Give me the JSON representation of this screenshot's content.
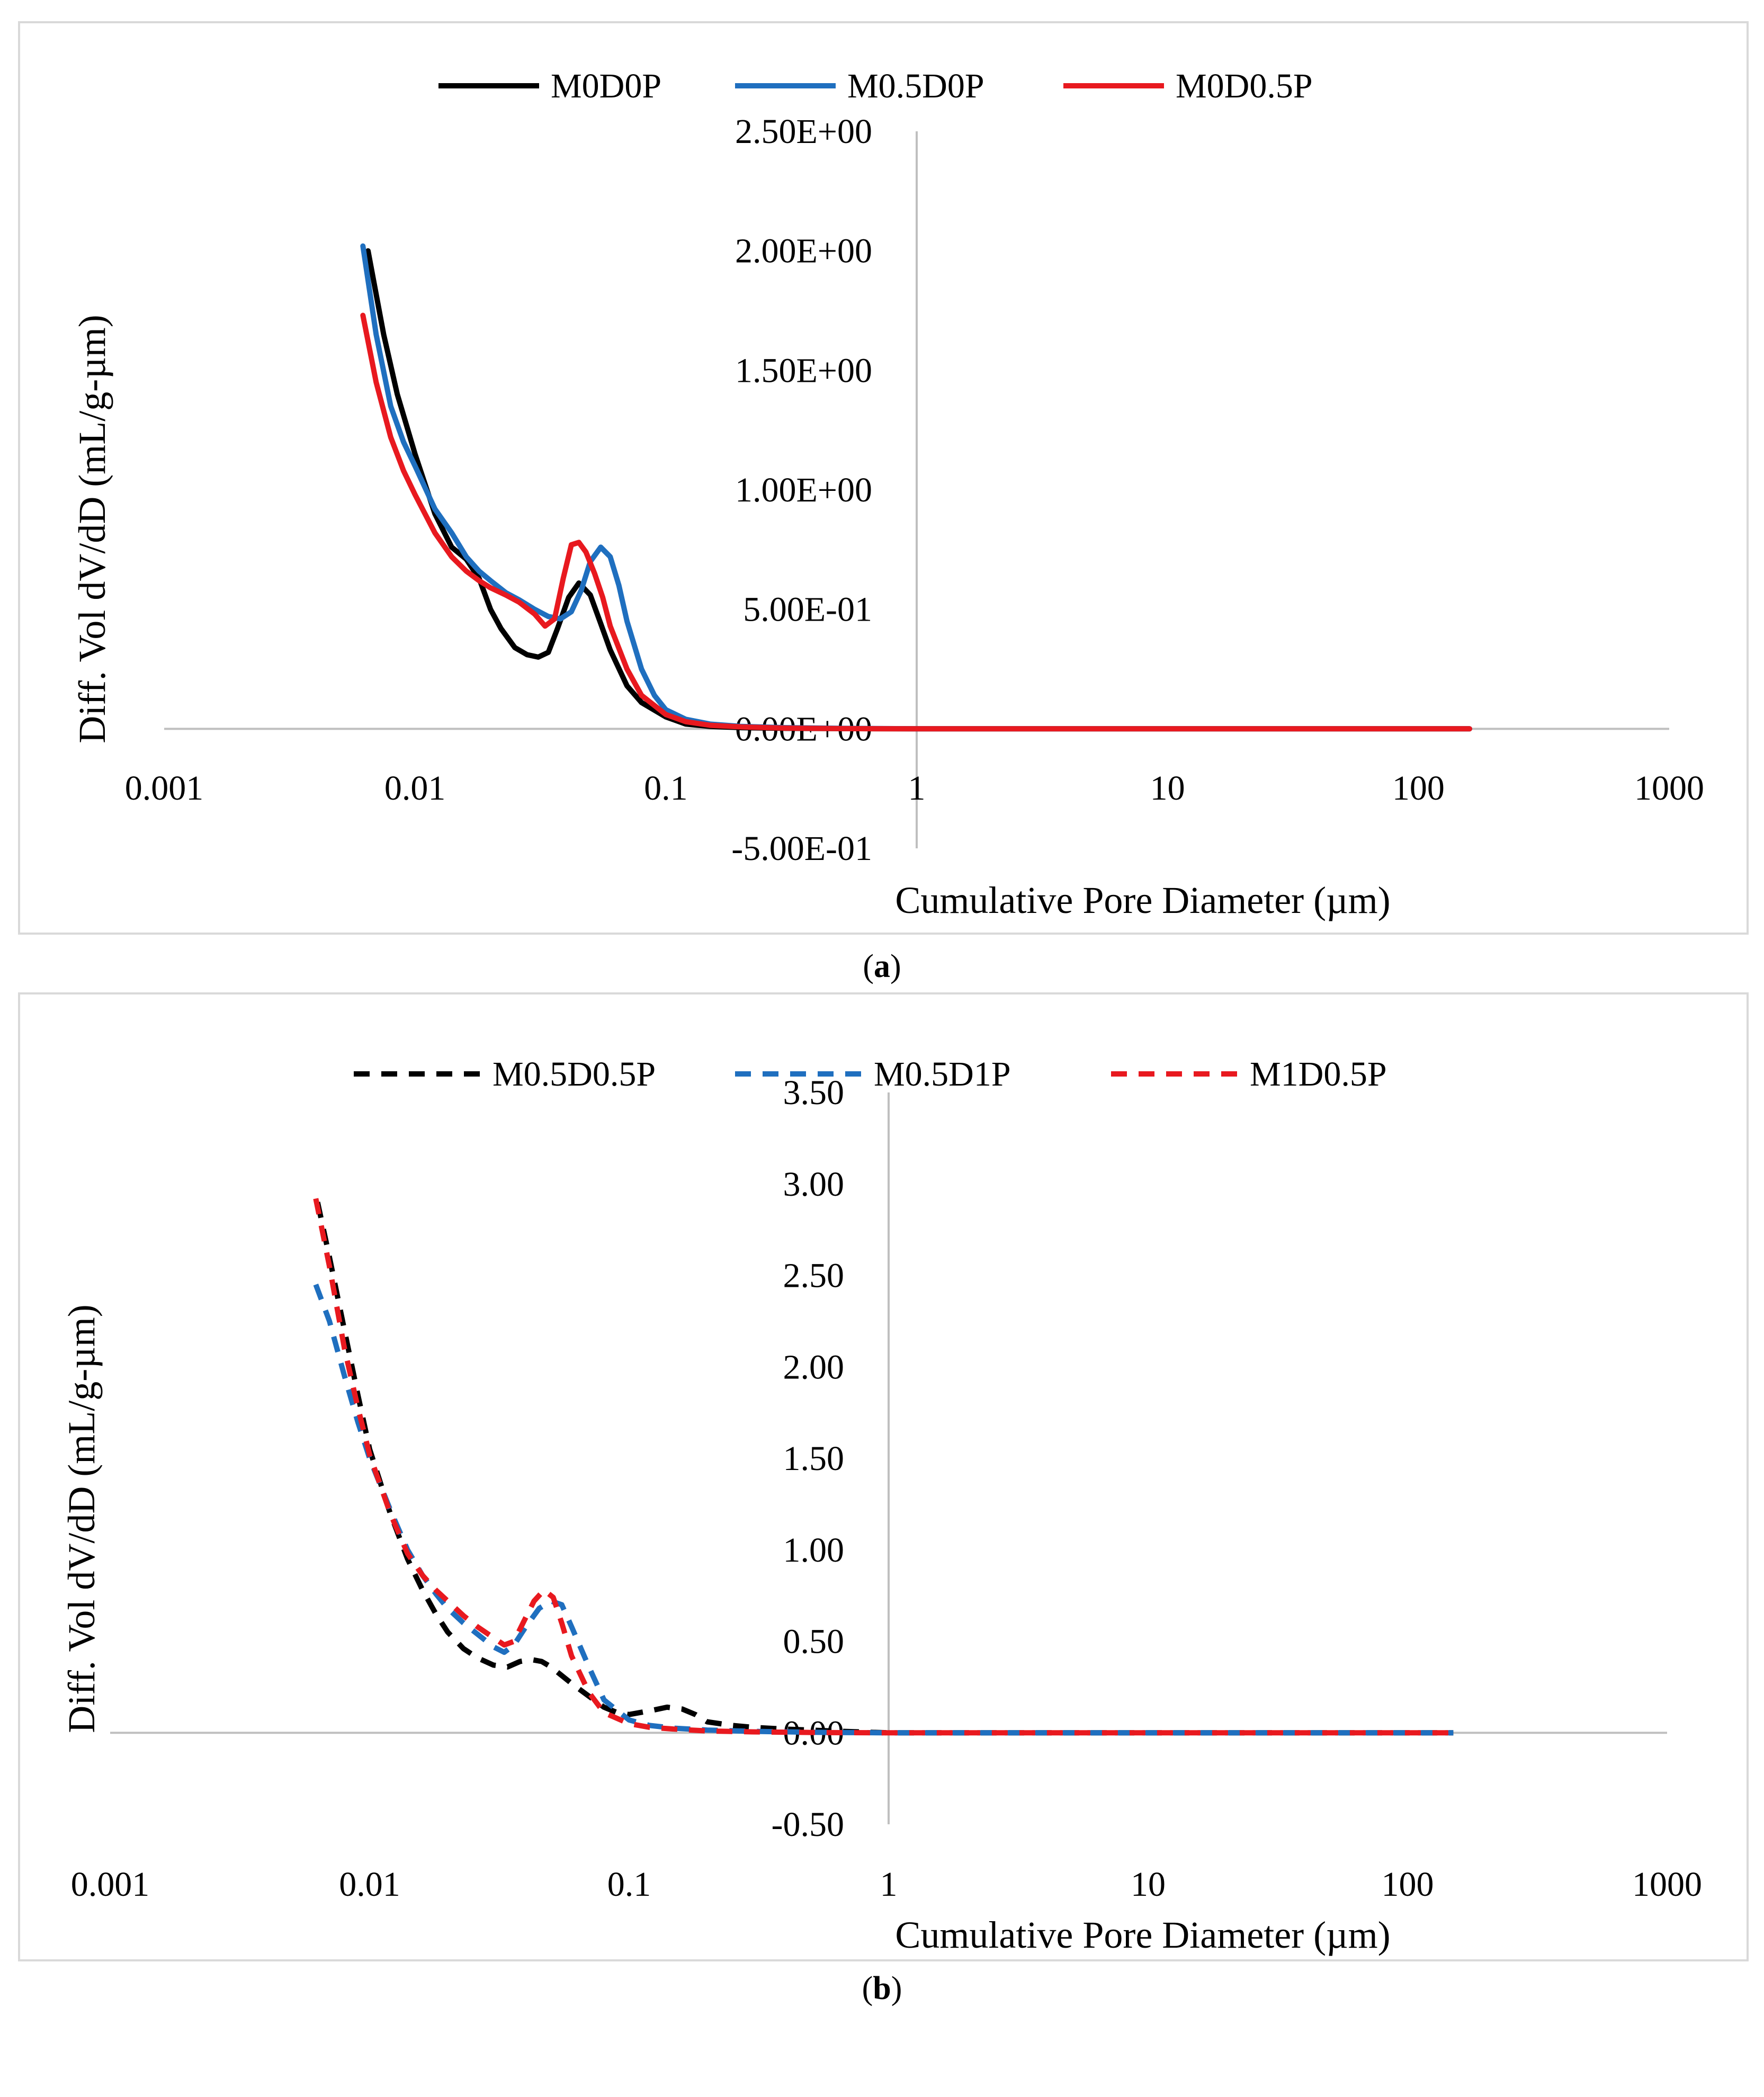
{
  "chart_data": [
    {
      "type": "line",
      "panel": "a",
      "caption_letter": "a",
      "title": "",
      "xlabel": "Cumulative Pore Diameter (µm)",
      "ylabel": "Diff. Vol  dV/dD (mL/g-µm)",
      "xscale": "log",
      "xlim": [
        0.001,
        1000
      ],
      "ylim": [
        -0.5,
        2.5
      ],
      "x_ticks": [
        0.001,
        0.01,
        0.1,
        1,
        10,
        100,
        1000
      ],
      "x_tick_labels": [
        "0.001",
        "0.01",
        "0.1",
        "1",
        "10",
        "100",
        "1000"
      ],
      "y_ticks": [
        -0.5,
        0,
        0.5,
        1,
        1.5,
        2,
        2.5
      ],
      "y_tick_labels": [
        "-5.00E-01",
        "0.00E+00",
        "5.00E-01",
        "1.00E+00",
        "1.50E+00",
        "2.00E+00",
        "2.50E+00"
      ],
      "y_axis_at_x": 1,
      "legend_position": "top",
      "series": [
        {
          "name": "M0D0P",
          "color": "#000000",
          "dash": "solid",
          "x": [
            0.0065,
            0.0075,
            0.0085,
            0.01,
            0.012,
            0.014,
            0.016,
            0.018,
            0.02,
            0.022,
            0.025,
            0.028,
            0.031,
            0.034,
            0.037,
            0.041,
            0.045,
            0.05,
            0.055,
            0.06,
            0.07,
            0.08,
            0.1,
            0.12,
            0.15,
            0.2,
            0.3,
            0.5,
            1,
            2,
            5,
            10,
            30,
            100,
            160
          ],
          "y": [
            2.0,
            1.65,
            1.4,
            1.15,
            0.9,
            0.76,
            0.71,
            0.63,
            0.5,
            0.42,
            0.34,
            0.31,
            0.3,
            0.32,
            0.42,
            0.55,
            0.61,
            0.56,
            0.44,
            0.33,
            0.18,
            0.11,
            0.05,
            0.02,
            0.01,
            0.005,
            0.002,
            0.001,
            0.0,
            0.0,
            0.0,
            0.0,
            0.0,
            0.0,
            0.0
          ]
        },
        {
          "name": "M0.5D0P",
          "color": "#1f6fbf",
          "dash": "solid",
          "x": [
            0.0062,
            0.007,
            0.008,
            0.009,
            0.01,
            0.012,
            0.014,
            0.016,
            0.018,
            0.02,
            0.023,
            0.026,
            0.03,
            0.034,
            0.038,
            0.042,
            0.046,
            0.05,
            0.055,
            0.06,
            0.065,
            0.07,
            0.08,
            0.09,
            0.1,
            0.12,
            0.15,
            0.2,
            0.3,
            0.5,
            1,
            3,
            10,
            30,
            100,
            160
          ],
          "y": [
            2.02,
            1.65,
            1.35,
            1.2,
            1.1,
            0.92,
            0.82,
            0.72,
            0.66,
            0.62,
            0.57,
            0.54,
            0.5,
            0.47,
            0.46,
            0.49,
            0.58,
            0.7,
            0.76,
            0.72,
            0.6,
            0.45,
            0.25,
            0.14,
            0.08,
            0.04,
            0.02,
            0.01,
            0.005,
            0.002,
            0.0,
            0.0,
            0.0,
            0.0,
            0.0,
            0.0
          ]
        },
        {
          "name": "M0D0.5P",
          "color": "#e8191f",
          "dash": "solid",
          "x": [
            0.0062,
            0.007,
            0.008,
            0.009,
            0.01,
            0.012,
            0.014,
            0.016,
            0.018,
            0.02,
            0.023,
            0.026,
            0.03,
            0.033,
            0.036,
            0.039,
            0.042,
            0.045,
            0.048,
            0.052,
            0.056,
            0.06,
            0.07,
            0.08,
            0.1,
            0.12,
            0.15,
            0.2,
            0.3,
            0.5,
            1,
            3,
            10,
            30,
            100,
            160
          ],
          "y": [
            1.73,
            1.45,
            1.22,
            1.08,
            0.98,
            0.82,
            0.72,
            0.66,
            0.62,
            0.59,
            0.56,
            0.53,
            0.48,
            0.43,
            0.46,
            0.63,
            0.77,
            0.78,
            0.74,
            0.65,
            0.55,
            0.43,
            0.25,
            0.14,
            0.06,
            0.03,
            0.015,
            0.008,
            0.003,
            0.001,
            0.0,
            0.0,
            0.0,
            0.0,
            0.0,
            0.0
          ]
        }
      ]
    },
    {
      "type": "line",
      "panel": "b",
      "caption_letter": "b",
      "title": "",
      "xlabel": "Cumulative Pore Diameter (µm)",
      "ylabel": "Diff. Vol  dV/dD (mL/g-µm)",
      "xscale": "log",
      "xlim": [
        0.001,
        1000
      ],
      "ylim": [
        -0.5,
        3.5
      ],
      "x_ticks": [
        0.001,
        0.01,
        0.1,
        1,
        10,
        100,
        1000
      ],
      "x_tick_labels": [
        "0.001",
        "0.01",
        "0.1",
        "1",
        "10",
        "100",
        "1000"
      ],
      "y_ticks": [
        -0.5,
        0,
        0.5,
        1,
        1.5,
        2,
        2.5,
        3,
        3.5
      ],
      "y_tick_labels": [
        "-0.50",
        "0.00",
        "0.50",
        "1.00",
        "1.50",
        "2.00",
        "2.50",
        "3.00",
        "3.50"
      ],
      "y_axis_at_x": 1,
      "legend_position": "top",
      "series": [
        {
          "name": "M0.5D0.5P",
          "color": "#000000",
          "dash": "dashed",
          "x": [
            0.0063,
            0.007,
            0.008,
            0.009,
            0.01,
            0.012,
            0.014,
            0.016,
            0.018,
            0.02,
            0.023,
            0.026,
            0.03,
            0.034,
            0.038,
            0.042,
            0.046,
            0.05,
            0.06,
            0.07,
            0.08,
            0.09,
            0.1,
            0.12,
            0.14,
            0.16,
            0.18,
            0.2,
            0.25,
            0.3,
            0.4,
            0.5,
            0.6,
            1,
            3,
            10,
            30,
            100,
            150
          ],
          "y": [
            2.9,
            2.6,
            2.2,
            1.85,
            1.55,
            1.2,
            0.95,
            0.78,
            0.65,
            0.55,
            0.46,
            0.41,
            0.37,
            0.36,
            0.39,
            0.4,
            0.39,
            0.36,
            0.27,
            0.2,
            0.14,
            0.11,
            0.1,
            0.12,
            0.14,
            0.13,
            0.1,
            0.06,
            0.04,
            0.03,
            0.02,
            0.015,
            0.01,
            0.0,
            0.0,
            0.0,
            0.0,
            0.0,
            0.0
          ]
        },
        {
          "name": "M0.5D1P",
          "color": "#1f6fbf",
          "dash": "dashed",
          "x": [
            0.0062,
            0.007,
            0.008,
            0.009,
            0.01,
            0.012,
            0.014,
            0.016,
            0.018,
            0.02,
            0.023,
            0.026,
            0.03,
            0.033,
            0.036,
            0.04,
            0.045,
            0.05,
            0.055,
            0.06,
            0.07,
            0.08,
            0.1,
            0.12,
            0.15,
            0.2,
            0.3,
            0.5,
            0.6,
            1,
            3,
            10,
            30,
            100,
            150
          ],
          "y": [
            2.45,
            2.25,
            1.95,
            1.7,
            1.5,
            1.22,
            1.0,
            0.86,
            0.76,
            0.68,
            0.6,
            0.54,
            0.47,
            0.44,
            0.48,
            0.58,
            0.68,
            0.72,
            0.7,
            0.58,
            0.36,
            0.18,
            0.07,
            0.04,
            0.025,
            0.015,
            0.008,
            0.003,
            0.002,
            0.0,
            0.0,
            0.0,
            0.0,
            0.0,
            0.0
          ]
        },
        {
          "name": "M1D0.5P",
          "color": "#e8191f",
          "dash": "dashed",
          "x": [
            0.0062,
            0.007,
            0.008,
            0.009,
            0.01,
            0.012,
            0.014,
            0.016,
            0.018,
            0.02,
            0.023,
            0.026,
            0.03,
            0.033,
            0.036,
            0.039,
            0.043,
            0.047,
            0.051,
            0.055,
            0.06,
            0.07,
            0.08,
            0.1,
            0.12,
            0.15,
            0.2,
            0.3,
            0.5,
            0.6,
            1,
            3,
            10,
            30,
            100,
            150
          ],
          "y": [
            2.92,
            2.55,
            2.1,
            1.78,
            1.52,
            1.2,
            0.98,
            0.86,
            0.78,
            0.72,
            0.64,
            0.58,
            0.52,
            0.48,
            0.5,
            0.6,
            0.72,
            0.78,
            0.74,
            0.6,
            0.42,
            0.22,
            0.11,
            0.05,
            0.03,
            0.02,
            0.01,
            0.005,
            0.002,
            0.001,
            0.0,
            0.0,
            0.0,
            0.0,
            0.0,
            0.0
          ]
        }
      ]
    }
  ]
}
